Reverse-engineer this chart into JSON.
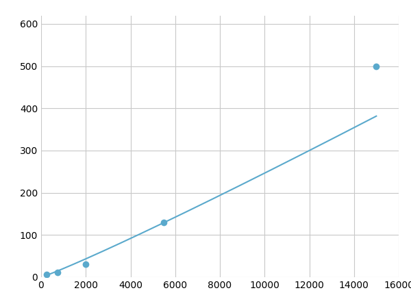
{
  "x_points": [
    250,
    750,
    2000,
    5500,
    15000
  ],
  "y_points": [
    7,
    11,
    30,
    130,
    500
  ],
  "line_color": "#5aa9cc",
  "marker_color": "#5aa9cc",
  "marker_size": 7,
  "line_width": 1.5,
  "xlim": [
    0,
    16000
  ],
  "ylim": [
    0,
    620
  ],
  "xticks": [
    0,
    2000,
    4000,
    6000,
    8000,
    10000,
    12000,
    14000,
    16000
  ],
  "yticks": [
    0,
    100,
    200,
    300,
    400,
    500,
    600
  ],
  "grid_color": "#c8c8c8",
  "grid_linewidth": 0.8,
  "background_color": "#ffffff",
  "fig_background": "#ffffff",
  "tick_labelsize": 10
}
